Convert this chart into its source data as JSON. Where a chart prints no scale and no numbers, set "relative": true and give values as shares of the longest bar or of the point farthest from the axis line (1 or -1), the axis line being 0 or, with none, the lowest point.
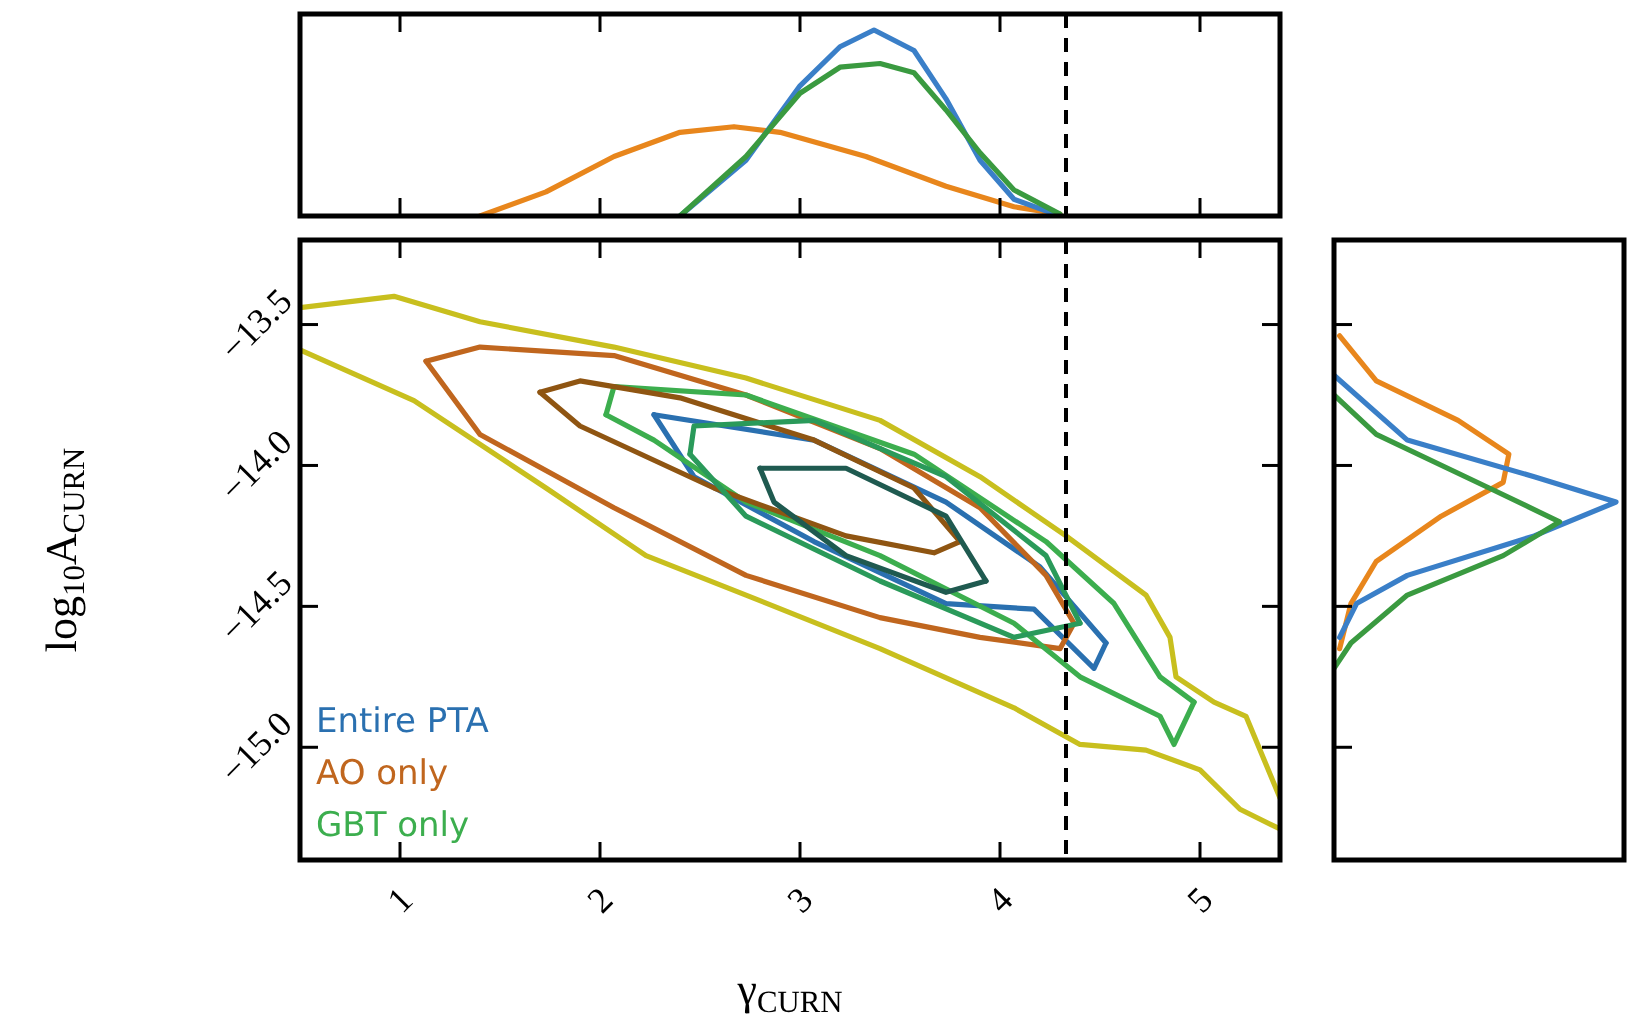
{
  "chart_data": [
    {
      "type": "line",
      "relative": true,
      "xlim": [
        0.5,
        5.4
      ],
      "xticks": [
        1,
        2,
        3,
        4,
        5
      ],
      "tick_labels": false,
      "ref_lines": [
        {
          "axis": "x",
          "value": 4.33,
          "color": "#000000",
          "line_style": "dashed"
        }
      ],
      "series": [
        {
          "color": "#e8861c",
          "x": [
            1.4,
            1.73,
            2.07,
            2.4,
            2.67,
            2.9,
            3.33,
            3.73,
            4.07,
            4.3
          ],
          "values": [
            0,
            0.13,
            0.32,
            0.45,
            0.48,
            0.45,
            0.32,
            0.16,
            0.05,
            0.01
          ]
        },
        {
          "color": "#3a7fc8",
          "x": [
            2.4,
            2.73,
            3.0,
            3.2,
            3.37,
            3.57,
            3.73,
            3.9,
            4.07,
            4.3
          ],
          "values": [
            0,
            0.3,
            0.7,
            0.91,
            1.0,
            0.89,
            0.63,
            0.3,
            0.09,
            0
          ]
        },
        {
          "color": "#3a9a40",
          "x": [
            2.4,
            2.73,
            3.0,
            3.2,
            3.4,
            3.57,
            3.73,
            3.9,
            4.07,
            4.3
          ],
          "values": [
            0,
            0.32,
            0.66,
            0.8,
            0.82,
            0.77,
            0.57,
            0.34,
            0.14,
            0.01
          ]
        }
      ]
    },
    {
      "type": "line",
      "xlim": [
        0.5,
        5.4
      ],
      "ylim": [
        -15.4,
        -13.2
      ],
      "xticks": [
        1,
        2,
        3,
        4,
        5
      ],
      "yticks": [
        {
          "value": -13.5,
          "label": "−13.5"
        },
        {
          "value": -14.0,
          "label": "−14.0"
        },
        {
          "value": -14.5,
          "label": "−14.5"
        },
        {
          "value": -15.0,
          "label": "−15.0"
        }
      ],
      "xlabel": "γ$_{CURN}$",
      "ylabel": "log$_{10}$A$_{CURN}$",
      "legend": "bottom left",
      "ref_lines": [
        {
          "axis": "x",
          "value": 4.33,
          "color": "#000000",
          "line_style": "dashed"
        }
      ],
      "series": [
        {
          "name": "Entire PTA",
          "color": "#2a70b0",
          "x": [
            2.27,
            3.07,
            3.73,
            4.2,
            4.53
          ],
          "values": [
            -13.82,
            -13.91,
            -14.13,
            -14.36,
            -14.63
          ]
        },
        {
          "name": "AO only",
          "color": "#c0661e",
          "x": [
            1.13,
            1.4,
            2.07,
            2.73,
            3.4,
            3.9,
            4.23,
            4.37
          ],
          "values": [
            -13.63,
            -13.58,
            -13.61,
            -13.75,
            -13.94,
            -14.15,
            -14.39,
            -14.56
          ]
        },
        {
          "name": "GBT only",
          "color": "#3cae4e",
          "x": [
            2.03,
            2.07,
            2.73,
            3.57,
            4.23,
            4.57,
            4.8,
            4.97
          ],
          "values": [
            -13.82,
            -13.72,
            -13.75,
            -13.96,
            -14.27,
            -14.49,
            -14.75,
            -14.84
          ]
        },
        {
          "color": "#2a70b0",
          "x": [
            2.27,
            2.47,
            3.07,
            3.73,
            4.17,
            4.47,
            4.53
          ],
          "values": [
            -13.82,
            -14.04,
            -14.27,
            -14.49,
            -14.51,
            -14.72,
            -14.63
          ]
        },
        {
          "color": "#c0661e",
          "x": [
            1.13,
            1.4,
            2.07,
            2.73,
            3.4,
            3.9,
            4.3,
            4.37
          ],
          "values": [
            -13.63,
            -13.89,
            -14.15,
            -14.39,
            -14.54,
            -14.61,
            -14.65,
            -14.56
          ]
        },
        {
          "color": "#3cae4e",
          "x": [
            2.03,
            2.27,
            2.73,
            3.4,
            4.07,
            4.4,
            4.8,
            4.87,
            4.97
          ],
          "values": [
            -13.82,
            -13.91,
            -14.13,
            -14.32,
            -14.56,
            -14.75,
            -14.89,
            -14.99,
            -14.84
          ]
        },
        {
          "color": "#c8bf1e",
          "x": [
            0.5,
            0.97,
            1.4,
            2.07,
            2.73,
            3.4,
            3.9,
            4.33,
            4.73,
            4.85,
            4.88,
            5.07,
            5.23,
            5.4
          ],
          "values": [
            -13.44,
            -13.4,
            -13.49,
            -13.58,
            -13.69,
            -13.84,
            -14.04,
            -14.25,
            -14.46,
            -14.61,
            -14.75,
            -14.84,
            -14.89,
            -15.18
          ]
        },
        {
          "color": "#c8bf1e",
          "x": [
            0.5,
            1.07,
            1.73,
            2.23,
            2.73,
            3.4,
            4.07,
            4.4,
            4.73,
            5.0,
            5.2,
            5.4
          ],
          "values": [
            -13.59,
            -13.77,
            -14.08,
            -14.32,
            -14.46,
            -14.65,
            -14.86,
            -14.99,
            -15.01,
            -15.08,
            -15.22,
            -15.29
          ]
        },
        {
          "color": "#8f5512",
          "x": [
            1.7,
            1.9,
            2.4,
            3.07,
            3.57,
            3.8
          ],
          "values": [
            -13.74,
            -13.7,
            -13.76,
            -13.91,
            -14.08,
            -14.27
          ]
        },
        {
          "color": "#8f5512",
          "x": [
            1.7,
            1.9,
            2.57,
            3.23,
            3.67,
            3.8
          ],
          "values": [
            -13.74,
            -13.86,
            -14.08,
            -14.25,
            -14.31,
            -14.27
          ]
        },
        {
          "color": "#2a9a5a",
          "x": [
            2.45,
            2.47,
            3.07,
            3.73,
            4.23,
            4.4
          ],
          "values": [
            -13.96,
            -13.86,
            -13.84,
            -14.04,
            -14.32,
            -14.56
          ]
        },
        {
          "color": "#2a9a5a",
          "x": [
            2.45,
            2.73,
            3.4,
            4.07,
            4.4
          ],
          "values": [
            -13.96,
            -14.18,
            -14.41,
            -14.61,
            -14.56
          ]
        },
        {
          "color": "#1f5a50",
          "x": [
            2.8,
            3.23,
            3.73,
            3.93
          ],
          "values": [
            -14.01,
            -14.01,
            -14.18,
            -14.41
          ]
        },
        {
          "color": "#1f5a50",
          "x": [
            2.8,
            2.87,
            3.23,
            3.73,
            3.93
          ],
          "values": [
            -14.01,
            -14.13,
            -14.32,
            -14.45,
            -14.41
          ]
        }
      ]
    },
    {
      "type": "line",
      "relative": true,
      "orientation": "horizontal",
      "ylim": [
        -15.4,
        -13.2
      ],
      "yticks": [
        -13.5,
        -14.0,
        -14.5,
        -15.0
      ],
      "tick_labels": false,
      "series": [
        {
          "color": "#e8861c",
          "x": [
            -13.54,
            -13.7,
            -13.84,
            -13.96,
            -14.06,
            -14.18,
            -14.34,
            -14.49,
            -14.65
          ],
          "values": [
            0.02,
            0.15,
            0.44,
            0.62,
            0.6,
            0.38,
            0.15,
            0.06,
            0.02
          ]
        },
        {
          "color": "#3a7fc8",
          "x": [
            -13.68,
            -13.91,
            -14.04,
            -14.13,
            -14.25,
            -14.39,
            -14.49,
            -14.61
          ],
          "values": [
            0,
            0.26,
            0.71,
            1.0,
            0.71,
            0.26,
            0.08,
            0.02
          ]
        },
        {
          "color": "#3a9a40",
          "x": [
            -13.75,
            -13.89,
            -14.08,
            -14.2,
            -14.32,
            -14.46,
            -14.63,
            -14.72
          ],
          "values": [
            0,
            0.15,
            0.55,
            0.8,
            0.6,
            0.26,
            0.06,
            0
          ]
        }
      ]
    }
  ]
}
